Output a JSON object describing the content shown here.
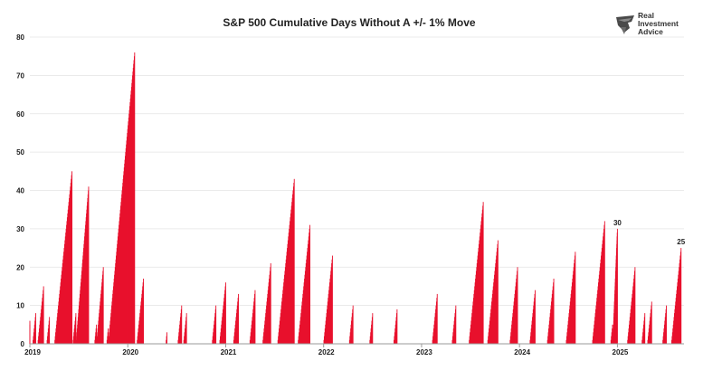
{
  "chart_data": {
    "type": "bar",
    "title": "S&P 500 Cumulative Days Without A +/- 1% Move",
    "xlabel": "",
    "ylabel": "",
    "ylim": [
      0,
      80
    ],
    "yticks": [
      0,
      10,
      20,
      30,
      40,
      50,
      60,
      70,
      80
    ],
    "x_ticks": [
      "2019",
      "2020",
      "2021",
      "2022",
      "2023",
      "2024",
      "2025"
    ],
    "x_range": [
      2019.0,
      2025.68
    ],
    "grid": "horizontal",
    "legend": "none",
    "bar_color": "#e8112d",
    "peaks": [
      {
        "x": 2019.0,
        "value": 6
      },
      {
        "x": 2019.06,
        "value": 8
      },
      {
        "x": 2019.14,
        "value": 15
      },
      {
        "x": 2019.2,
        "value": 7
      },
      {
        "x": 2019.43,
        "value": 45
      },
      {
        "x": 2019.47,
        "value": 8
      },
      {
        "x": 2019.6,
        "value": 41
      },
      {
        "x": 2019.68,
        "value": 5
      },
      {
        "x": 2019.75,
        "value": 20
      },
      {
        "x": 2019.8,
        "value": 4
      },
      {
        "x": 2020.07,
        "value": 76
      },
      {
        "x": 2020.16,
        "value": 17
      },
      {
        "x": 2020.4,
        "value": 3
      },
      {
        "x": 2020.55,
        "value": 10
      },
      {
        "x": 2020.6,
        "value": 8
      },
      {
        "x": 2020.9,
        "value": 10
      },
      {
        "x": 2021.0,
        "value": 16
      },
      {
        "x": 2021.13,
        "value": 13
      },
      {
        "x": 2021.3,
        "value": 14
      },
      {
        "x": 2021.46,
        "value": 21
      },
      {
        "x": 2021.7,
        "value": 43
      },
      {
        "x": 2021.86,
        "value": 31
      },
      {
        "x": 2022.09,
        "value": 23
      },
      {
        "x": 2022.3,
        "value": 10
      },
      {
        "x": 2022.5,
        "value": 8
      },
      {
        "x": 2022.75,
        "value": 9
      },
      {
        "x": 2023.16,
        "value": 13
      },
      {
        "x": 2023.35,
        "value": 10
      },
      {
        "x": 2023.63,
        "value": 37
      },
      {
        "x": 2023.78,
        "value": 27
      },
      {
        "x": 2023.98,
        "value": 20
      },
      {
        "x": 2024.16,
        "value": 14
      },
      {
        "x": 2024.35,
        "value": 17
      },
      {
        "x": 2024.57,
        "value": 24
      },
      {
        "x": 2024.87,
        "value": 32
      },
      {
        "x": 2024.95,
        "value": 5
      },
      {
        "x": 2025.0,
        "value": 30
      },
      {
        "x": 2025.18,
        "value": 20
      },
      {
        "x": 2025.28,
        "value": 8
      },
      {
        "x": 2025.35,
        "value": 11
      },
      {
        "x": 2025.5,
        "value": 10
      },
      {
        "x": 2025.65,
        "value": 25
      }
    ],
    "annotations": [
      {
        "x": 2025.0,
        "value": 30,
        "text": "30"
      },
      {
        "x": 2025.65,
        "value": 25,
        "text": "25"
      }
    ]
  },
  "brand": {
    "line1": "Real",
    "line2": "Investment",
    "line3": "Advice",
    "logo_icon": "eagle-shield-icon"
  }
}
